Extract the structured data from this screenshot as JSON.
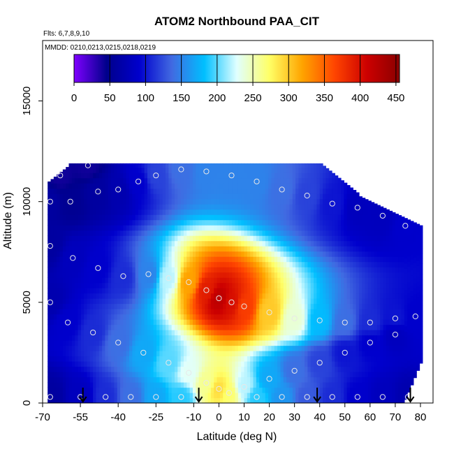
{
  "chart_data": {
    "type": "heatmap",
    "title": "ATOM2 Northbound PAA_CIT",
    "flights_label": "Flts: 6,7,8,9,10",
    "dates_label": "MMDD: 0210,0213,0215,0218,0219",
    "xlabel": "Latitude (deg N)",
    "ylabel": "Altitude (m)",
    "xlim": [
      -70,
      85
    ],
    "ylim": [
      0,
      18000
    ],
    "x_ticks": [
      -70,
      -55,
      -40,
      -25,
      -10,
      0,
      10,
      20,
      30,
      40,
      50,
      60,
      70,
      80
    ],
    "y_ticks": [
      0,
      5000,
      10000,
      15000
    ],
    "colorbar": {
      "min": 0,
      "max": 455,
      "ticks": [
        0,
        50,
        100,
        150,
        200,
        250,
        300,
        350,
        400,
        450
      ],
      "colors": [
        "#7f00ff",
        "#00008b",
        "#0000cd",
        "#4169e1",
        "#00bfff",
        "#e0ffff",
        "#ffff66",
        "#ffa500",
        "#ff4500",
        "#cc0000",
        "#8b0000"
      ]
    },
    "flight_markers_lat": [
      -54,
      -8,
      39,
      76
    ],
    "samples": [
      {
        "lat": -67,
        "alt": 10000,
        "value": 60
      },
      {
        "lat": -63,
        "alt": 11300,
        "value": 40
      },
      {
        "lat": -59,
        "alt": 10000,
        "value": 50
      },
      {
        "lat": -52,
        "alt": 11800,
        "value": 40
      },
      {
        "lat": -48,
        "alt": 10500,
        "value": 60
      },
      {
        "lat": -40,
        "alt": 10600,
        "value": 70
      },
      {
        "lat": -32,
        "alt": 11000,
        "value": 90
      },
      {
        "lat": -25,
        "alt": 11300,
        "value": 120
      },
      {
        "lat": -15,
        "alt": 11600,
        "value": 140
      },
      {
        "lat": -5,
        "alt": 11500,
        "value": 150
      },
      {
        "lat": 5,
        "alt": 11300,
        "value": 150
      },
      {
        "lat": 15,
        "alt": 11000,
        "value": 150
      },
      {
        "lat": 25,
        "alt": 10600,
        "value": 140
      },
      {
        "lat": 35,
        "alt": 10300,
        "value": 120
      },
      {
        "lat": 45,
        "alt": 9900,
        "value": 100
      },
      {
        "lat": 55,
        "alt": 9700,
        "value": 80
      },
      {
        "lat": 65,
        "alt": 9300,
        "value": 80
      },
      {
        "lat": 74,
        "alt": 8800,
        "value": 90
      },
      {
        "lat": -67,
        "alt": 7800,
        "value": 60
      },
      {
        "lat": -58,
        "alt": 7200,
        "value": 80
      },
      {
        "lat": -48,
        "alt": 6700,
        "value": 90
      },
      {
        "lat": -38,
        "alt": 6300,
        "value": 110
      },
      {
        "lat": -28,
        "alt": 6400,
        "value": 150
      },
      {
        "lat": -20,
        "alt": 6200,
        "value": 220
      },
      {
        "lat": -12,
        "alt": 6000,
        "value": 320
      },
      {
        "lat": -5,
        "alt": 5600,
        "value": 390
      },
      {
        "lat": 0,
        "alt": 5200,
        "value": 420
      },
      {
        "lat": 5,
        "alt": 5000,
        "value": 400
      },
      {
        "lat": 10,
        "alt": 4800,
        "value": 370
      },
      {
        "lat": 20,
        "alt": 4500,
        "value": 300
      },
      {
        "lat": 30,
        "alt": 4200,
        "value": 240
      },
      {
        "lat": 40,
        "alt": 4100,
        "value": 180
      },
      {
        "lat": 50,
        "alt": 4000,
        "value": 140
      },
      {
        "lat": 60,
        "alt": 4000,
        "value": 110
      },
      {
        "lat": 70,
        "alt": 4200,
        "value": 100
      },
      {
        "lat": 78,
        "alt": 4300,
        "value": 90
      },
      {
        "lat": -67,
        "alt": 5000,
        "value": 70
      },
      {
        "lat": -60,
        "alt": 4000,
        "value": 90
      },
      {
        "lat": -50,
        "alt": 3500,
        "value": 110
      },
      {
        "lat": -40,
        "alt": 3000,
        "value": 140
      },
      {
        "lat": -30,
        "alt": 2500,
        "value": 170
      },
      {
        "lat": -20,
        "alt": 2000,
        "value": 200
      },
      {
        "lat": -12,
        "alt": 1500,
        "value": 230
      },
      {
        "lat": -5,
        "alt": 1000,
        "value": 260
      },
      {
        "lat": 0,
        "alt": 700,
        "value": 290
      },
      {
        "lat": 4,
        "alt": 500,
        "value": 270
      },
      {
        "lat": 10,
        "alt": 800,
        "value": 220
      },
      {
        "lat": 20,
        "alt": 1200,
        "value": 170
      },
      {
        "lat": 30,
        "alt": 1600,
        "value": 140
      },
      {
        "lat": 40,
        "alt": 2000,
        "value": 120
      },
      {
        "lat": 50,
        "alt": 2500,
        "value": 100
      },
      {
        "lat": 60,
        "alt": 3000,
        "value": 90
      },
      {
        "lat": 70,
        "alt": 3400,
        "value": 80
      },
      {
        "lat": -67,
        "alt": 300,
        "value": 60
      },
      {
        "lat": -55,
        "alt": 300,
        "value": 80
      },
      {
        "lat": -45,
        "alt": 300,
        "value": 110
      },
      {
        "lat": -35,
        "alt": 300,
        "value": 140
      },
      {
        "lat": -25,
        "alt": 300,
        "value": 170
      },
      {
        "lat": -15,
        "alt": 300,
        "value": 190
      },
      {
        "lat": 15,
        "alt": 300,
        "value": 190
      },
      {
        "lat": 25,
        "alt": 300,
        "value": 160
      },
      {
        "lat": 35,
        "alt": 300,
        "value": 130
      },
      {
        "lat": 45,
        "alt": 300,
        "value": 110
      },
      {
        "lat": 55,
        "alt": 300,
        "value": 90
      },
      {
        "lat": 65,
        "alt": 300,
        "value": 80
      },
      {
        "lat": 75,
        "alt": 300,
        "value": 70
      }
    ]
  }
}
